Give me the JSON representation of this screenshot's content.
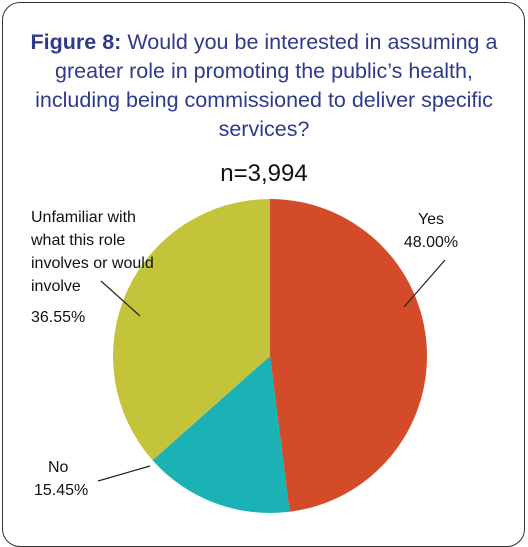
{
  "chart_data": {
    "type": "pie",
    "title_prefix": "Figure 8:",
    "title": "Would you be interested in assuming a greater role in promoting the public’s health, including being commissioned to deliver specific services?",
    "subtitle": "n=3,994",
    "slices": [
      {
        "label": "Yes",
        "value": 48.0,
        "value_label": "48.00%",
        "color": "#d44b2a"
      },
      {
        "label": "No",
        "value": 15.45,
        "value_label": "15.45%",
        "color": "#1ab2b4"
      },
      {
        "label": "Unfamiliar with what this role involves or would involve",
        "value": 36.55,
        "value_label": "36.55%",
        "color": "#c4c43a"
      }
    ]
  }
}
